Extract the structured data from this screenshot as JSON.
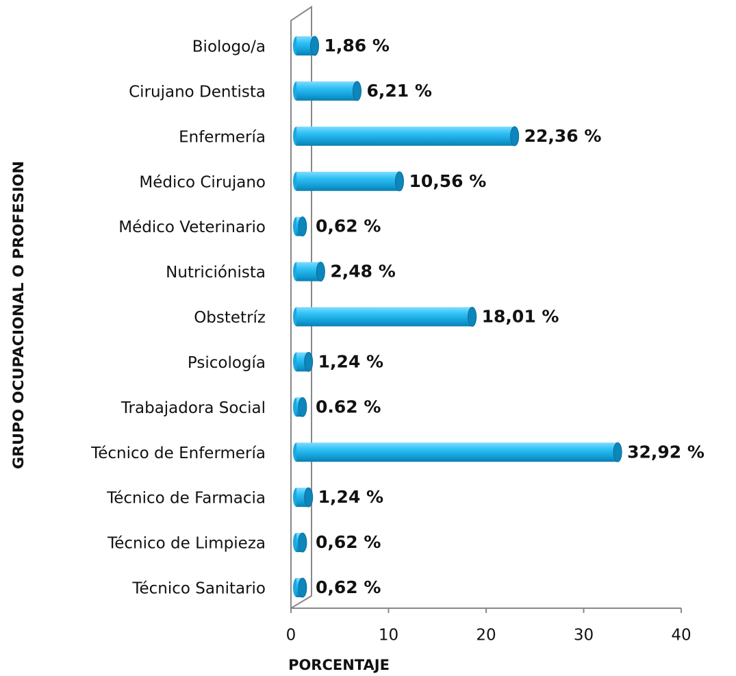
{
  "chart_data": {
    "type": "barh",
    "xlabel": "PORCENTAJE",
    "ylabel": "GRUPO OCUPACIONAL O PROFESION",
    "categories": [
      "Biologo/a",
      "Cirujano Dentista",
      "Enfermería",
      "Médico Cirujano",
      "Médico Veterinario",
      "Nutriciónista",
      "Obstetríz",
      "Psicología",
      "Trabajadora Social",
      "Técnico de Enfermería",
      "Técnico de Farmacia",
      "Técnico de Limpieza",
      "Técnico Sanitario"
    ],
    "values": [
      1.86,
      6.21,
      22.36,
      10.56,
      0.62,
      2.48,
      18.01,
      1.24,
      0.62,
      32.92,
      1.24,
      0.62,
      0.62
    ],
    "value_labels": [
      "1,86 %",
      "6,21 %",
      "22,36 %",
      "10,56 %",
      "0,62 %",
      "2,48 %",
      "18,01 %",
      "1,24 %",
      "0.62 %",
      "32,92 %",
      "1,24 %",
      "0,62 %",
      "0,62 %"
    ],
    "color": "#1aa9e0",
    "xlim": [
      0,
      40
    ],
    "xticks": [
      0,
      10,
      20,
      30,
      40
    ]
  }
}
